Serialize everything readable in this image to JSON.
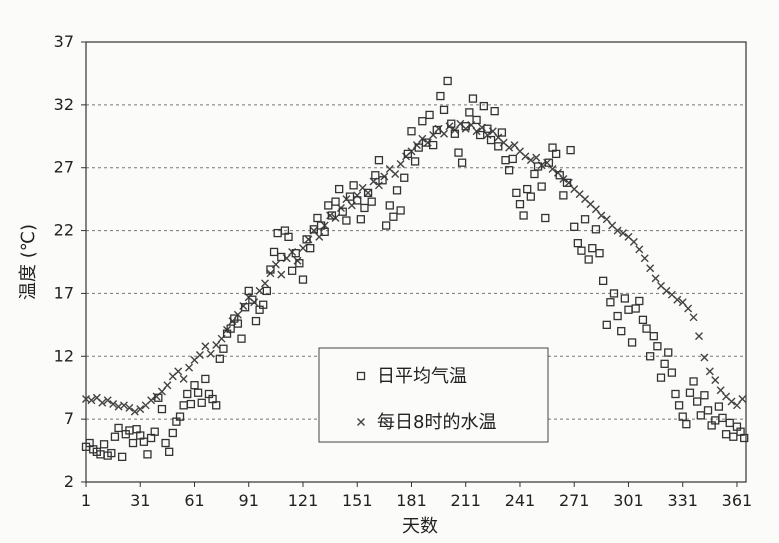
{
  "chart_data": {
    "type": "scatter",
    "title": "",
    "xlabel": "天数",
    "ylabel": "温度 (℃)",
    "xlim": [
      1,
      366
    ],
    "ylim": [
      2,
      37
    ],
    "x_ticks": [
      1,
      31,
      61,
      91,
      121,
      151,
      181,
      211,
      241,
      271,
      301,
      331,
      361
    ],
    "y_ticks": [
      2,
      7,
      12,
      17,
      22,
      27,
      32,
      37
    ],
    "grid": "horizontal dashed",
    "legend_position": "lower-middle",
    "series": [
      {
        "name": "日平均气温",
        "marker": "square",
        "color": "#333333",
        "points": [
          [
            1,
            4.8
          ],
          [
            3,
            5.1
          ],
          [
            5,
            4.6
          ],
          [
            7,
            4.4
          ],
          [
            9,
            4.2
          ],
          [
            11,
            5.0
          ],
          [
            13,
            4.1
          ],
          [
            15,
            4.3
          ],
          [
            17,
            5.6
          ],
          [
            19,
            6.3
          ],
          [
            21,
            4.0
          ],
          [
            23,
            5.8
          ],
          [
            25,
            6.1
          ],
          [
            27,
            5.1
          ],
          [
            29,
            6.2
          ],
          [
            31,
            5.7
          ],
          [
            33,
            5.2
          ],
          [
            35,
            4.2
          ],
          [
            37,
            5.5
          ],
          [
            39,
            6.0
          ],
          [
            41,
            8.7
          ],
          [
            43,
            7.8
          ],
          [
            45,
            5.1
          ],
          [
            47,
            4.4
          ],
          [
            49,
            5.9
          ],
          [
            51,
            6.8
          ],
          [
            53,
            7.2
          ],
          [
            55,
            8.1
          ],
          [
            57,
            9.0
          ],
          [
            59,
            8.2
          ],
          [
            61,
            9.7
          ],
          [
            63,
            9.1
          ],
          [
            65,
            8.3
          ],
          [
            67,
            10.2
          ],
          [
            69,
            9.0
          ],
          [
            71,
            8.6
          ],
          [
            73,
            8.1
          ],
          [
            75,
            11.8
          ],
          [
            77,
            12.6
          ],
          [
            79,
            13.8
          ],
          [
            81,
            14.2
          ],
          [
            83,
            15.0
          ],
          [
            85,
            14.6
          ],
          [
            87,
            13.4
          ],
          [
            89,
            15.9
          ],
          [
            91,
            17.2
          ],
          [
            93,
            16.5
          ],
          [
            95,
            14.8
          ],
          [
            97,
            15.7
          ],
          [
            99,
            16.1
          ],
          [
            101,
            17.2
          ],
          [
            103,
            18.9
          ],
          [
            105,
            20.3
          ],
          [
            107,
            21.8
          ],
          [
            109,
            19.9
          ],
          [
            111,
            22.0
          ],
          [
            113,
            21.5
          ],
          [
            115,
            18.8
          ],
          [
            117,
            20.2
          ],
          [
            119,
            19.4
          ],
          [
            121,
            18.1
          ],
          [
            123,
            21.3
          ],
          [
            125,
            20.6
          ],
          [
            127,
            22.1
          ],
          [
            129,
            23.0
          ],
          [
            131,
            22.4
          ],
          [
            133,
            21.9
          ],
          [
            135,
            24.0
          ],
          [
            137,
            23.2
          ],
          [
            139,
            24.3
          ],
          [
            141,
            25.3
          ],
          [
            143,
            23.5
          ],
          [
            145,
            22.8
          ],
          [
            147,
            24.7
          ],
          [
            149,
            25.6
          ],
          [
            151,
            24.4
          ],
          [
            153,
            22.9
          ],
          [
            155,
            23.8
          ],
          [
            157,
            25.0
          ],
          [
            159,
            24.3
          ],
          [
            161,
            26.4
          ],
          [
            163,
            27.6
          ],
          [
            165,
            26.0
          ],
          [
            167,
            22.4
          ],
          [
            169,
            24.0
          ],
          [
            171,
            23.1
          ],
          [
            173,
            25.2
          ],
          [
            175,
            23.6
          ],
          [
            177,
            26.2
          ],
          [
            179,
            28.1
          ],
          [
            181,
            29.9
          ],
          [
            183,
            27.5
          ],
          [
            185,
            28.6
          ],
          [
            187,
            30.7
          ],
          [
            189,
            29.0
          ],
          [
            191,
            31.2
          ],
          [
            193,
            28.8
          ],
          [
            195,
            30.0
          ],
          [
            197,
            32.7
          ],
          [
            199,
            31.6
          ],
          [
            201,
            33.9
          ],
          [
            203,
            30.5
          ],
          [
            205,
            29.7
          ],
          [
            207,
            28.2
          ],
          [
            209,
            27.4
          ],
          [
            211,
            30.3
          ],
          [
            213,
            31.4
          ],
          [
            215,
            32.5
          ],
          [
            217,
            30.8
          ],
          [
            219,
            29.6
          ],
          [
            221,
            31.9
          ],
          [
            223,
            30.1
          ],
          [
            225,
            29.2
          ],
          [
            227,
            31.5
          ],
          [
            229,
            28.7
          ],
          [
            231,
            29.8
          ],
          [
            233,
            27.6
          ],
          [
            235,
            26.8
          ],
          [
            237,
            27.7
          ],
          [
            239,
            25.0
          ],
          [
            241,
            24.1
          ],
          [
            243,
            23.2
          ],
          [
            245,
            25.3
          ],
          [
            247,
            24.7
          ],
          [
            249,
            26.5
          ],
          [
            251,
            27.1
          ],
          [
            253,
            25.5
          ],
          [
            255,
            23.0
          ],
          [
            257,
            27.4
          ],
          [
            259,
            28.6
          ],
          [
            261,
            28.1
          ],
          [
            263,
            26.4
          ],
          [
            265,
            24.8
          ],
          [
            267,
            25.8
          ],
          [
            269,
            28.4
          ],
          [
            271,
            22.3
          ],
          [
            273,
            21.0
          ],
          [
            275,
            20.4
          ],
          [
            277,
            22.9
          ],
          [
            279,
            19.7
          ],
          [
            281,
            20.6
          ],
          [
            283,
            22.1
          ],
          [
            285,
            20.2
          ],
          [
            287,
            18.0
          ],
          [
            289,
            14.5
          ],
          [
            291,
            16.3
          ],
          [
            293,
            17.0
          ],
          [
            295,
            15.2
          ],
          [
            297,
            14.0
          ],
          [
            299,
            16.6
          ],
          [
            301,
            15.7
          ],
          [
            303,
            13.1
          ],
          [
            305,
            15.8
          ],
          [
            307,
            16.4
          ],
          [
            309,
            14.9
          ],
          [
            311,
            14.2
          ],
          [
            313,
            12.0
          ],
          [
            315,
            13.6
          ],
          [
            317,
            12.8
          ],
          [
            319,
            10.3
          ],
          [
            321,
            11.4
          ],
          [
            323,
            12.3
          ],
          [
            325,
            10.7
          ],
          [
            327,
            9.0
          ],
          [
            329,
            8.1
          ],
          [
            331,
            7.2
          ],
          [
            333,
            6.6
          ],
          [
            335,
            9.1
          ],
          [
            337,
            10.0
          ],
          [
            339,
            8.4
          ],
          [
            341,
            7.3
          ],
          [
            343,
            8.9
          ],
          [
            345,
            7.7
          ],
          [
            347,
            6.5
          ],
          [
            349,
            6.9
          ],
          [
            351,
            8.0
          ],
          [
            353,
            7.1
          ],
          [
            355,
            5.8
          ],
          [
            357,
            6.7
          ],
          [
            359,
            5.6
          ],
          [
            361,
            6.4
          ],
          [
            363,
            6.0
          ],
          [
            365,
            5.5
          ]
        ]
      },
      {
        "name": "每日8时的水温",
        "marker": "cross",
        "color": "#444444",
        "points": [
          [
            1,
            8.6
          ],
          [
            4,
            8.5
          ],
          [
            7,
            8.7
          ],
          [
            10,
            8.3
          ],
          [
            13,
            8.5
          ],
          [
            16,
            8.2
          ],
          [
            19,
            8.0
          ],
          [
            22,
            8.1
          ],
          [
            25,
            7.9
          ],
          [
            28,
            7.6
          ],
          [
            31,
            7.8
          ],
          [
            34,
            8.1
          ],
          [
            37,
            8.5
          ],
          [
            40,
            8.8
          ],
          [
            43,
            9.2
          ],
          [
            46,
            9.7
          ],
          [
            49,
            10.4
          ],
          [
            52,
            10.8
          ],
          [
            55,
            10.2
          ],
          [
            58,
            11.1
          ],
          [
            61,
            11.7
          ],
          [
            64,
            12.1
          ],
          [
            67,
            12.8
          ],
          [
            70,
            12.2
          ],
          [
            73,
            12.9
          ],
          [
            76,
            13.4
          ],
          [
            79,
            14.1
          ],
          [
            82,
            14.8
          ],
          [
            85,
            15.3
          ],
          [
            88,
            16.0
          ],
          [
            91,
            16.7
          ],
          [
            94,
            16.3
          ],
          [
            97,
            17.2
          ],
          [
            100,
            17.8
          ],
          [
            103,
            18.6
          ],
          [
            106,
            19.3
          ],
          [
            109,
            18.5
          ],
          [
            112,
            19.8
          ],
          [
            115,
            20.3
          ],
          [
            118,
            19.6
          ],
          [
            121,
            20.6
          ],
          [
            124,
            21.3
          ],
          [
            127,
            22.0
          ],
          [
            130,
            21.5
          ],
          [
            133,
            22.4
          ],
          [
            136,
            23.2
          ],
          [
            139,
            23.0
          ],
          [
            142,
            23.8
          ],
          [
            145,
            24.5
          ],
          [
            148,
            24.0
          ],
          [
            151,
            24.8
          ],
          [
            154,
            25.4
          ],
          [
            157,
            25.0
          ],
          [
            160,
            25.9
          ],
          [
            163,
            25.6
          ],
          [
            166,
            26.3
          ],
          [
            169,
            26.9
          ],
          [
            172,
            26.5
          ],
          [
            175,
            27.3
          ],
          [
            178,
            27.9
          ],
          [
            181,
            28.3
          ],
          [
            184,
            28.8
          ],
          [
            187,
            29.3
          ],
          [
            190,
            29.0
          ],
          [
            193,
            29.6
          ],
          [
            196,
            30.1
          ],
          [
            199,
            29.7
          ],
          [
            202,
            30.3
          ],
          [
            205,
            30.0
          ],
          [
            208,
            30.5
          ],
          [
            211,
            30.1
          ],
          [
            214,
            30.4
          ],
          [
            217,
            29.9
          ],
          [
            220,
            30.2
          ],
          [
            223,
            29.6
          ],
          [
            226,
            29.9
          ],
          [
            229,
            29.4
          ],
          [
            232,
            29.0
          ],
          [
            235,
            28.6
          ],
          [
            238,
            28.8
          ],
          [
            241,
            28.3
          ],
          [
            244,
            27.9
          ],
          [
            247,
            27.6
          ],
          [
            250,
            27.8
          ],
          [
            253,
            27.2
          ],
          [
            256,
            27.4
          ],
          [
            259,
            26.9
          ],
          [
            262,
            26.6
          ],
          [
            265,
            26.1
          ],
          [
            268,
            25.8
          ],
          [
            271,
            25.3
          ],
          [
            274,
            24.9
          ],
          [
            277,
            24.5
          ],
          [
            280,
            24.1
          ],
          [
            283,
            23.7
          ],
          [
            286,
            23.2
          ],
          [
            289,
            22.9
          ],
          [
            292,
            22.4
          ],
          [
            295,
            22.0
          ],
          [
            298,
            21.8
          ],
          [
            301,
            21.5
          ],
          [
            304,
            21.1
          ],
          [
            307,
            20.5
          ],
          [
            310,
            19.8
          ],
          [
            313,
            19.0
          ],
          [
            316,
            18.2
          ],
          [
            319,
            17.6
          ],
          [
            322,
            17.2
          ],
          [
            325,
            16.9
          ],
          [
            328,
            16.5
          ],
          [
            331,
            16.3
          ],
          [
            334,
            15.8
          ],
          [
            337,
            15.1
          ],
          [
            340,
            13.6
          ],
          [
            343,
            11.9
          ],
          [
            346,
            10.8
          ],
          [
            349,
            10.1
          ],
          [
            352,
            9.3
          ],
          [
            355,
            8.8
          ],
          [
            358,
            8.4
          ],
          [
            361,
            8.1
          ],
          [
            364,
            8.6
          ]
        ]
      }
    ]
  }
}
